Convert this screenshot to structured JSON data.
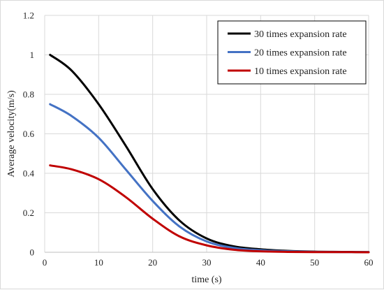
{
  "chart_data": {
    "type": "line",
    "title": "",
    "xlabel": "time (s)",
    "ylabel": "Average velocity(m/s)",
    "xlim": [
      0,
      60
    ],
    "ylim": [
      0,
      1.2
    ],
    "x_ticks": [
      0,
      10,
      20,
      30,
      40,
      50,
      60
    ],
    "y_ticks": [
      0,
      0.2,
      0.4,
      0.6,
      0.8,
      1,
      1.2
    ],
    "x_tick_labels": [
      "0",
      "10",
      "20",
      "30",
      "40",
      "50",
      "60"
    ],
    "y_tick_labels": [
      "0",
      "0.2",
      "0.4",
      "0.6",
      "0.8",
      "1",
      "1.2"
    ],
    "grid": true,
    "legend_position": "top-right",
    "series": [
      {
        "name": "30 times expansion rate",
        "color": "#000000",
        "x": [
          1,
          5,
          10,
          15,
          20,
          25,
          30,
          35,
          40,
          45,
          50,
          55,
          60
        ],
        "y": [
          1.0,
          0.92,
          0.75,
          0.54,
          0.32,
          0.16,
          0.07,
          0.03,
          0.015,
          0.007,
          0.003,
          0.002,
          0.001
        ]
      },
      {
        "name": "20 times expansion rate",
        "color": "#4472c4",
        "x": [
          1,
          5,
          10,
          15,
          20,
          25,
          30,
          35,
          40,
          45,
          50,
          55,
          60
        ],
        "y": [
          0.75,
          0.69,
          0.58,
          0.42,
          0.26,
          0.13,
          0.055,
          0.022,
          0.01,
          0.005,
          0.002,
          0.001,
          0.001
        ]
      },
      {
        "name": "10 times expansion rate",
        "color": "#c00000",
        "x": [
          1,
          5,
          10,
          15,
          20,
          25,
          30,
          35,
          40,
          45,
          50,
          55,
          60
        ],
        "y": [
          0.44,
          0.42,
          0.37,
          0.28,
          0.17,
          0.08,
          0.035,
          0.013,
          0.005,
          0.002,
          0.001,
          0.001,
          0.0
        ]
      }
    ]
  }
}
